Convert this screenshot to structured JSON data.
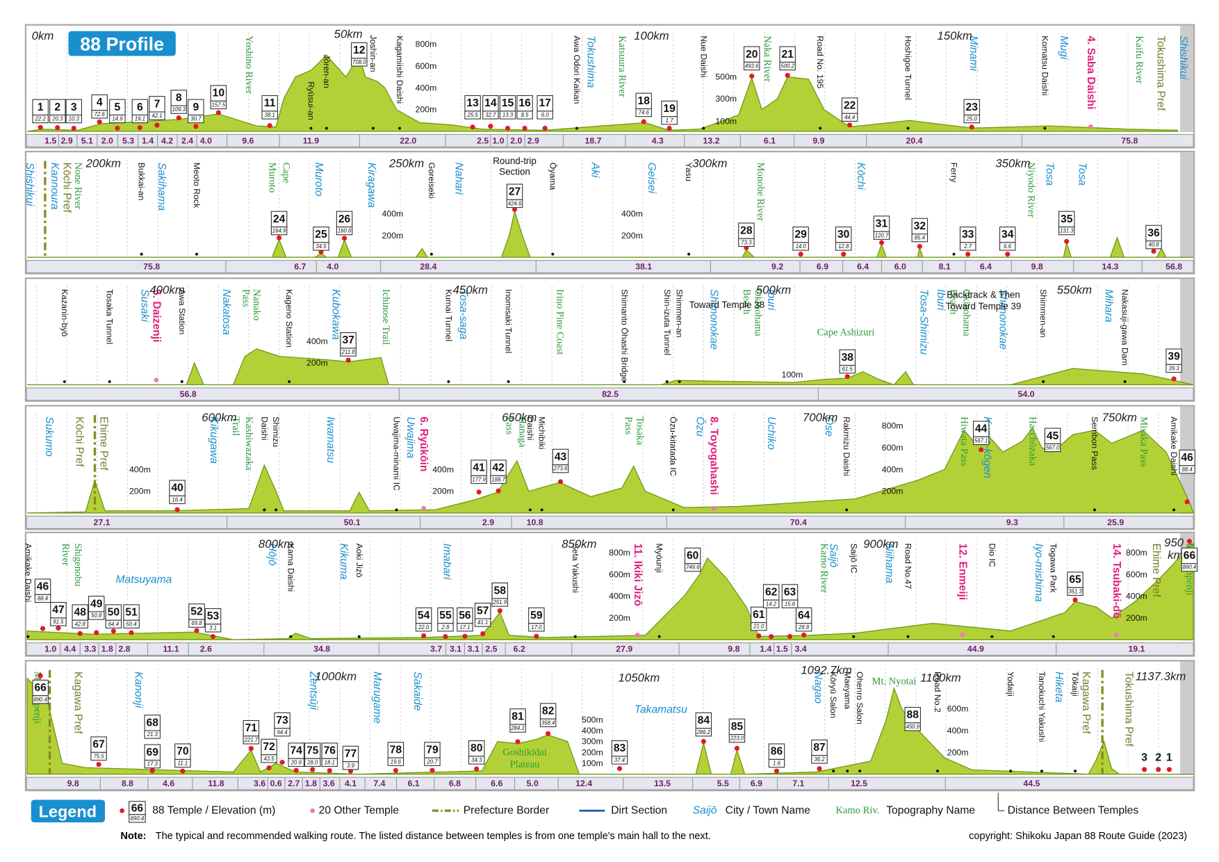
{
  "title": "88 Profile",
  "rows": [
    {
      "km": [
        "0km",
        "50km",
        "100km",
        "150km"
      ],
      "temples": [
        {
          "number": "1",
          "elevation": "22.2"
        },
        {
          "number": "2",
          "elevation": "20.3"
        },
        {
          "number": "3",
          "elevation": "10.3"
        },
        {
          "number": "4",
          "elevation": "72.6"
        },
        {
          "number": "5",
          "elevation": "14.9"
        },
        {
          "number": "6",
          "elevation": "19.1"
        },
        {
          "number": "7",
          "elevation": "42.1"
        },
        {
          "number": "8",
          "elevation": "109.3"
        },
        {
          "number": "9",
          "elevation": "30.7"
        },
        {
          "number": "10",
          "elevation": "157.5"
        },
        {
          "number": "11",
          "elevation": "38.1"
        },
        {
          "number": "12",
          "elevation": "708.0"
        },
        {
          "number": "13",
          "elevation": "25.5"
        },
        {
          "number": "14",
          "elevation": "32.7"
        },
        {
          "number": "15",
          "elevation": "13.3"
        },
        {
          "number": "16",
          "elevation": "8.5"
        },
        {
          "number": "17",
          "elevation": "6.0"
        },
        {
          "number": "18",
          "elevation": "74.6"
        },
        {
          "number": "19",
          "elevation": "1.7"
        },
        {
          "number": "20",
          "elevation": "493.6"
        },
        {
          "number": "21",
          "elevation": "500.2"
        },
        {
          "number": "22",
          "elevation": "44.4"
        },
        {
          "number": "23",
          "elevation": "25.0"
        }
      ],
      "distances": [
        "1.5",
        "2.9",
        "5.1",
        "2.0",
        "5.3",
        "1.4",
        "4.2",
        "2.4",
        "4.0",
        "9.6",
        "11.9",
        "22.0",
        "2.5",
        "1.0",
        "2.0",
        "2.9",
        "18.7",
        "4.3",
        "13.2",
        "6.1",
        "9.9",
        "20.4",
        "75.8"
      ],
      "towns": [
        "Tokushima",
        "Minami",
        "Mugi",
        "Shishikui"
      ],
      "topography": [
        "Yoshino River",
        "Katsuura River",
        "Naka River",
        "Kaifu River"
      ],
      "landmarks": [
        "Jōren-an",
        "Ryūsui-an",
        "Joshin-an",
        "Kagamiishi Daishi",
        "Awa Odori Kaikan",
        "Nue Daishi",
        "Road No. 195",
        "Hoshigoe Tunnel",
        "Komatsu Daishi"
      ],
      "other_temples": [
        "4. Saba Daishi"
      ],
      "prefectures": [
        "Tokushima Pref"
      ],
      "elevation_labels": [
        "800m",
        "600m",
        "400m",
        "200m",
        "500m",
        "300m",
        "100m"
      ]
    },
    {
      "km": [
        "200km",
        "250km",
        "300km",
        "350km"
      ],
      "temples": [
        {
          "number": "24",
          "elevation": "164.9"
        },
        {
          "number": "25",
          "elevation": "34.5"
        },
        {
          "number": "26",
          "elevation": "160.6"
        },
        {
          "number": "27",
          "elevation": "424.6"
        },
        {
          "number": "28",
          "elevation": "73.3"
        },
        {
          "number": "29",
          "elevation": "14.0"
        },
        {
          "number": "30",
          "elevation": "12.8"
        },
        {
          "number": "31",
          "elevation": "120.7"
        },
        {
          "number": "32",
          "elevation": "85.4"
        },
        {
          "number": "33",
          "elevation": "2.7"
        },
        {
          "number": "34",
          "elevation": "6.6"
        },
        {
          "number": "35",
          "elevation": "131.3"
        },
        {
          "number": "36",
          "elevation": "40.8"
        }
      ],
      "distances": [
        "75.8",
        "6.7",
        "4.0",
        "28.4",
        "38.1",
        "9.2",
        "6.9",
        "6.4",
        "6.0",
        "8.1",
        "6.4",
        "9.8",
        "14.3",
        "56.8"
      ],
      "towns": [
        "Shishikui",
        "Kannoura",
        "Sakihama",
        "Muroto",
        "Kiragawa",
        "Nahari",
        "Aki",
        "Geisei",
        "Kōchi",
        "Tosa",
        "Tosa"
      ],
      "topography": [
        "None River",
        "Muroto",
        "Cape",
        "Monobe River",
        "Niyodo River"
      ],
      "landmarks": [
        "Bukkai-an",
        "Meoto Rock",
        "Goreiseki",
        "Ōyama",
        "Yasu",
        "Ferry"
      ],
      "prefectures": [
        "Kōchi Pref"
      ],
      "annotations": [
        "Round-trip",
        "Section"
      ],
      "elevation_labels": [
        "400m",
        "200m",
        "400m",
        "200m"
      ]
    },
    {
      "km": [
        "400km",
        "450km",
        "500km",
        "550km"
      ],
      "temples": [
        {
          "number": "37",
          "elevation": "211.8"
        },
        {
          "number": "38",
          "elevation": "61.5"
        },
        {
          "number": "39",
          "elevation": "39.3"
        }
      ],
      "distances": [
        "56.8",
        "82.5",
        "54.0"
      ],
      "towns": [
        "Susaki",
        "Nakatosa",
        "Kubokawa",
        "Tosa-saga",
        "Shimonokae",
        "Iburi",
        "Tosa-Shimizu",
        "Iburi",
        "Shimonokae",
        "Mihara"
      ],
      "topography": [
        "Nanako",
        "Pass",
        "Ichinose Trail",
        "Irino Pine Coast",
        "Okinohama",
        "Beach",
        "Okinohama",
        "Beach",
        "Cape Ashizuri"
      ],
      "landmarks": [
        "Kazanin-byō",
        "Tosaka Tunnel",
        "Awa Station",
        "Kageno Station",
        "Kumai Tunnel",
        "Inomisaki Tunnel",
        "Shimanto Ōhashi Bridge",
        "Shin-izuta Tunnel",
        "Shimmen-an",
        "Shimmen-an",
        "Nakasuji-gawa Dam"
      ],
      "other_temples": [
        "5. Daizenji"
      ],
      "annotations": [
        "Toward Temple 38",
        "Backtrack & Then",
        "Toward Temple 39"
      ],
      "elevation_labels": [
        "400m",
        "200m",
        "100m"
      ]
    },
    {
      "km": [
        "600km",
        "650km",
        "700km",
        "750km"
      ],
      "temples": [
        {
          "number": "40",
          "elevation": "16.4"
        },
        {
          "number": "41",
          "elevation": "177.9"
        },
        {
          "number": "42",
          "elevation": "188.7"
        },
        {
          "number": "43",
          "elevation": "273.6"
        },
        {
          "number": "44",
          "elevation": "567.1"
        },
        {
          "number": "45",
          "elevation": "567.0"
        },
        {
          "number": "46",
          "elevation": "88.4"
        }
      ],
      "distances": [
        "27.1",
        "50.1",
        "2.9",
        "10.8",
        "70.4",
        "9.3",
        "25.9"
      ],
      "towns": [
        "Sukumo",
        "Kikugawa",
        "Iwamatsu",
        "Uwajima",
        "Ōzu",
        "Uchiko",
        "Ōse",
        "Kuma-kōgen"
      ],
      "topography": [
        "Kashiwazaka",
        "Trail",
        "Hanaga",
        "Pass",
        "Tosaka",
        "Pass",
        "Hiwata Pass",
        "Hacchōzaka",
        "Misaka Pass"
      ],
      "landmarks": [
        "Shimizu",
        "Daishi",
        "Uwajima-minami IC",
        "Michibiki",
        "Daishi",
        "Ōzu-kitatada IC",
        "Rakmizu Daishi",
        "Sembon Pass",
        "Amikake Daishi"
      ],
      "other_temples": [
        "6. Ryūkōin",
        "8. Toyogahashi"
      ],
      "prefectures": [
        "Kōchi Pref",
        "Ehime Pref"
      ],
      "elevation_labels": [
        "400m",
        "200m",
        "400m",
        "200m",
        "800m",
        "600m",
        "400m",
        "200m"
      ]
    },
    {
      "km": [
        "800km",
        "850km",
        "900km",
        "950",
        "km"
      ],
      "temples": [
        {
          "number": "46",
          "elevation": "88.4"
        },
        {
          "number": "47",
          "elevation": "91.5"
        },
        {
          "number": "48",
          "elevation": "42.8"
        },
        {
          "number": "49",
          "elevation": "50.8"
        },
        {
          "number": "50",
          "elevation": "64.4"
        },
        {
          "number": "51",
          "elevation": "50.4"
        },
        {
          "number": "52",
          "elevation": "69.8"
        },
        {
          "number": "53",
          "elevation": "3.1"
        },
        {
          "number": "54",
          "elevation": "22.0"
        },
        {
          "number": "55",
          "elevation": "2.8"
        },
        {
          "number": "56",
          "elevation": "17.1"
        },
        {
          "number": "57",
          "elevation": "41.1"
        },
        {
          "number": "58",
          "elevation": "251.9"
        },
        {
          "number": "59",
          "elevation": "17.0"
        },
        {
          "number": "60",
          "elevation": "749.6"
        },
        {
          "number": "61",
          "elevation": "21.0"
        },
        {
          "number": "62",
          "elevation": "14.2"
        },
        {
          "number": "63",
          "elevation": "15.6"
        },
        {
          "number": "64",
          "elevation": "28.8"
        },
        {
          "number": "65",
          "elevation": "351.3"
        },
        {
          "number": "66",
          "elevation": "890.4"
        }
      ],
      "distances": [
        "1.0",
        "4.4",
        "3.3",
        "1.8",
        "2.8",
        "11.1",
        "2.6",
        "34.8",
        "3.7",
        "3.1",
        "3.1",
        "2.5",
        "6.2",
        "27.9",
        "9.8",
        "1.4",
        "1.5",
        "3.4",
        "44.9",
        "19.1"
      ],
      "towns": [
        "Matsuyama",
        "Hōjō",
        "Kikuma",
        "Imabari",
        "Saijō",
        "Niihama",
        "Iyo-mishima"
      ],
      "topography": [
        "Shigenobu",
        "River",
        "Kamo River",
        "Mt. Umpenji"
      ],
      "landmarks": [
        "Amikake Daishi",
        "Kama Daishi",
        "Aoki Jizō",
        "Seta Yakushi",
        "Myōunji",
        "Saijō IC",
        "Road No.47",
        "Dio IC",
        "Togawa Park"
      ],
      "other_temples": [
        "11. Ikiki Jizō",
        "12. Enmeiji",
        "14. Tsubaki-dō"
      ],
      "prefectures": [
        "Ehime Pref"
      ],
      "elevation_labels": [
        "800m",
        "600m",
        "400m",
        "200m",
        "800m",
        "600m",
        "400m",
        "200m"
      ]
    },
    {
      "km": [
        "1000km",
        "1050km",
        "1092.7km",
        "1100km",
        "1137.3km"
      ],
      "temples": [
        {
          "number": "66",
          "elevation": "890.4"
        },
        {
          "number": "67",
          "elevation": "75.5"
        },
        {
          "number": "68",
          "elevation": "21.3"
        },
        {
          "number": "69",
          "elevation": "17.3"
        },
        {
          "number": "70",
          "elevation": "11.1"
        },
        {
          "number": "71",
          "elevation": "221.7"
        },
        {
          "number": "72",
          "elevation": "43.5"
        },
        {
          "number": "73",
          "elevation": "94.4"
        },
        {
          "number": "74",
          "elevation": "20.9"
        },
        {
          "number": "75",
          "elevation": "28.0"
        },
        {
          "number": "76",
          "elevation": "18.1"
        },
        {
          "number": "77",
          "elevation": "3.9"
        },
        {
          "number": "78",
          "elevation": "19.6"
        },
        {
          "number": "79",
          "elevation": "20.7"
        },
        {
          "number": "80",
          "elevation": "34.3"
        },
        {
          "number": "81",
          "elevation": "284.1"
        },
        {
          "number": "82",
          "elevation": "358.4"
        },
        {
          "number": "83",
          "elevation": "37.4"
        },
        {
          "number": "84",
          "elevation": "286.2"
        },
        {
          "number": "85",
          "elevation": "223.0"
        },
        {
          "number": "86",
          "elevation": "1.6"
        },
        {
          "number": "87",
          "elevation": "36.2"
        },
        {
          "number": "88",
          "elevation": "450.9"
        }
      ],
      "end_temples": [
        "3",
        "2",
        "1"
      ],
      "distances": [
        "9.8",
        "8.8",
        "4.6",
        "11.8",
        "3.6",
        "0.6",
        "2.7",
        "1.8",
        "3.6",
        "4.1",
        "7.4",
        "6.1",
        "6.8",
        "6.6",
        "5.0",
        "12.4",
        "13.5",
        "5.5",
        "6.9",
        "7.1",
        "12.5",
        "44.5"
      ],
      "towns": [
        "Kanonji",
        "Zentsūji",
        "Marugame",
        "Sakaide",
        "Takamatsu",
        "Nagao",
        "Hiketa"
      ],
      "topography": [
        "Mt. Umpenji",
        "Goshikidai",
        "Plateau",
        "Mt. Nyotai"
      ],
      "landmarks": [
        "Kōryū Salon",
        "Maeyama",
        "Ohenro Salon",
        "Road No.2",
        "Yodaiji",
        "Tanokuchi Yakushi",
        "Tōkaiji"
      ],
      "prefectures": [
        "Kagawa Pref",
        "Kagawa Pref",
        "Tokushima Pref"
      ],
      "elevation_labels": [
        "500m",
        "400m",
        "300m",
        "200m",
        "100m",
        "600m",
        "400m",
        "200m"
      ]
    }
  ],
  "legend": {
    "title": "Legend",
    "sample_number": "66",
    "sample_elevation": "890.4",
    "temple": "88 Temple / Elevation (m)",
    "other_temple": "20 Other Temple",
    "prefecture_border": "Prefecture Border",
    "dirt_section": "Dirt Section",
    "town_sample": "Saijō",
    "town": "City / Town Name",
    "topography_sample": "Kamo Riv.",
    "topography": "Topography Name",
    "distance": "Distance Between Temples"
  },
  "note": {
    "label": "Note:",
    "text": "The typical and recommended walking route. The listed distance between temples is from one temple's main hall to the next."
  },
  "copyright": "copyright: Shikoku Japan 88 Route Guide (2023)"
}
